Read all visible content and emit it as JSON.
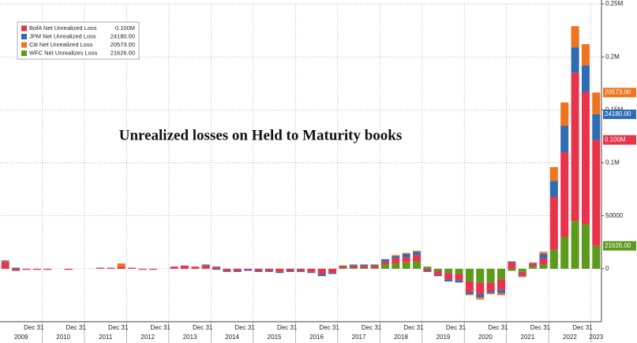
{
  "chart_data": {
    "type": "stacked_bar",
    "title": "Unrealized losses on Held to Maturity books",
    "categories": [
      null,
      null,
      null,
      "Dec 31",
      null,
      null,
      null,
      "Dec 31",
      null,
      null,
      null,
      "Dec 31",
      null,
      null,
      null,
      "Dec 31",
      null,
      null,
      null,
      "Dec 31",
      null,
      null,
      null,
      "Dec 31",
      null,
      null,
      null,
      "Dec 31",
      null,
      null,
      null,
      "Dec 31",
      null,
      null,
      null,
      "Dec 31",
      null,
      null,
      null,
      "Dec 31",
      null,
      null,
      null,
      "Dec 31",
      null,
      null,
      null,
      "Dec 31",
      null,
      null,
      null,
      "Dec 31",
      null,
      null,
      null,
      "Dec 31",
      null
    ],
    "year_labels": [
      "2009",
      "2010",
      "2011",
      "2012",
      "2013",
      "2014",
      "2015",
      "2016",
      "2017",
      "2018",
      "2019",
      "2020",
      "2021",
      "2022",
      "2023"
    ],
    "series": [
      {
        "name": "BofA Net Unrealized Loss",
        "color": "#e8334a",
        "last_value_label": "0.100M",
        "values": [
          6000,
          -2000,
          -1000,
          -1000,
          -1000,
          0,
          -1000,
          0,
          0,
          1000,
          1000,
          2000,
          1000,
          -1000,
          -1000,
          0,
          2000,
          3000,
          2000,
          3000,
          2000,
          -2000,
          -2000,
          -1000,
          -2000,
          -2000,
          -3000,
          -2000,
          -2000,
          -3000,
          -5000,
          -4000,
          2000,
          2000,
          2000,
          2000,
          3000,
          5000,
          5000,
          6000,
          -2000,
          -4000,
          -6000,
          -6000,
          -10000,
          -11000,
          -8000,
          -10000,
          6000,
          -3000,
          2000,
          6000,
          50000,
          80000,
          140000,
          125000,
          100000
        ]
      },
      {
        "name": "JPM Net Unrealized Loss",
        "color": "#2e6db4",
        "last_value_label": "24180.00",
        "values": [
          1000,
          1000,
          0,
          0,
          0,
          0,
          0,
          0,
          0,
          0,
          0,
          0,
          0,
          0,
          0,
          0,
          0,
          0,
          0,
          1000,
          -1000,
          -1000,
          -1000,
          -1000,
          -1000,
          -1000,
          -1000,
          -1000,
          -1000,
          -1000,
          -2000,
          -1000,
          0,
          1000,
          1000,
          1000,
          2000,
          2000,
          3000,
          3000,
          -1000,
          -1000,
          -2000,
          -2000,
          -2000,
          -3000,
          -2000,
          -3000,
          1000,
          -1000,
          1000,
          4000,
          15000,
          25000,
          24000,
          25000,
          24180
        ]
      },
      {
        "name": "Citi Net Unrealized Loss",
        "color": "#f0731e",
        "last_value_label": "20573.00",
        "values": [
          1000,
          0,
          0,
          0,
          0,
          0,
          0,
          0,
          0,
          0,
          0,
          3000,
          0,
          0,
          0,
          0,
          0,
          0,
          0,
          0,
          0,
          0,
          0,
          0,
          0,
          0,
          0,
          0,
          0,
          0,
          0,
          0,
          0,
          0,
          0,
          0,
          0,
          1000,
          1000,
          1000,
          0,
          0,
          0,
          0,
          -1000,
          -2000,
          -1000,
          -2000,
          0,
          -1000,
          1000,
          2000,
          13000,
          22000,
          20000,
          20000,
          20573
        ]
      },
      {
        "name": "WFC Net Unrealizes Loss",
        "color": "#5c9a1c",
        "last_value_label": "21626.00",
        "values": [
          0,
          0,
          0,
          0,
          0,
          0,
          0,
          0,
          0,
          0,
          0,
          0,
          0,
          0,
          0,
          0,
          0,
          0,
          0,
          0,
          0,
          0,
          0,
          0,
          0,
          0,
          0,
          0,
          0,
          0,
          0,
          0,
          1000,
          1000,
          1000,
          1000,
          4000,
          5000,
          6000,
          7000,
          2000,
          -2000,
          -4000,
          -5000,
          -12000,
          -13000,
          -13000,
          -10000,
          -2000,
          -3000,
          2000,
          4000,
          18000,
          30000,
          45000,
          42000,
          21626
        ]
      }
    ],
    "ylim": [
      -50000,
      250000
    ],
    "yticks": [
      0,
      50000,
      {
        "value": 100000,
        "label": "0.1M"
      },
      {
        "value": 150000,
        "label": "0.15M"
      },
      {
        "value": 200000,
        "label": "0.2M"
      },
      {
        "value": 250000,
        "label": "0.25M"
      }
    ],
    "grid": true
  }
}
